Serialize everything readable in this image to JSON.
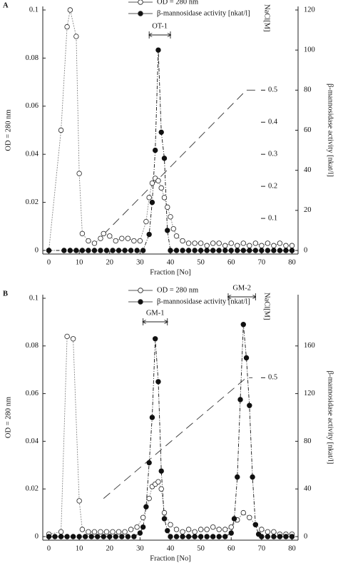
{
  "chart_data": [
    {
      "type": "line",
      "panel_label": "A",
      "xlabel": "Fraction [No]",
      "ylabel": "OD = 280 nm",
      "y2label": "β-mannosidase activity [nkat/l]",
      "y3label": "NaCl[M]",
      "xlim": [
        -2,
        82
      ],
      "xticks": [
        0,
        10,
        20,
        30,
        40,
        50,
        60,
        70,
        80
      ],
      "ylim": [
        0,
        0.1
      ],
      "yticks": [
        0,
        0.02,
        0.04,
        0.06,
        0.08,
        0.1
      ],
      "y2lim": [
        0,
        120
      ],
      "y2ticks": [
        0,
        20,
        40,
        60,
        80,
        100,
        120
      ],
      "y3lim": [
        0,
        0.75
      ],
      "y3ticks": [
        0.1,
        0.2,
        0.3,
        0.4,
        0.5
      ],
      "series": [
        {
          "name": "OD = 280 nm",
          "color": "#888888",
          "marker": "open",
          "axis": "y",
          "x": [
            0,
            4,
            6,
            7,
            9,
            10,
            11,
            13,
            15,
            17,
            18,
            20,
            22,
            24,
            26,
            28,
            30,
            32,
            33,
            34,
            35,
            36,
            37,
            38,
            39,
            40,
            41,
            42,
            44,
            46,
            48,
            50,
            52,
            54,
            56,
            58,
            60,
            62,
            64,
            66,
            68,
            70,
            72,
            74,
            76,
            78,
            80
          ],
          "values": [
            0,
            0.05,
            0.093,
            0.1,
            0.089,
            0.032,
            0.007,
            0.004,
            0.003,
            0.005,
            0.007,
            0.006,
            0.004,
            0.005,
            0.005,
            0.004,
            0.004,
            0.012,
            0.022,
            0.028,
            0.03,
            0.029,
            0.026,
            0.022,
            0.018,
            0.014,
            0.009,
            0.006,
            0.004,
            0.003,
            0.003,
            0.003,
            0.002,
            0.003,
            0.003,
            0.002,
            0.003,
            0.002,
            0.003,
            0.002,
            0.003,
            0.002,
            0.003,
            0.002,
            0.003,
            0.002,
            0.002
          ]
        },
        {
          "name": "β-mannosidase activity [nkat/l]",
          "color": "#111111",
          "marker": "filled",
          "axis": "y2",
          "x": [
            0,
            5,
            7,
            9,
            11,
            13,
            15,
            17,
            19,
            21,
            23,
            25,
            27,
            29,
            31,
            33,
            34,
            35,
            36,
            37,
            38,
            39,
            40,
            42,
            44,
            46,
            48,
            50,
            52,
            54,
            56,
            58,
            60,
            62,
            64,
            66,
            68,
            70,
            72,
            74,
            76,
            78,
            80
          ],
          "values": [
            0,
            0,
            0,
            0,
            0,
            0,
            0,
            0,
            0,
            0,
            0,
            0,
            0,
            0,
            0,
            8,
            24,
            50,
            100,
            59,
            46,
            10,
            0,
            0,
            0,
            0,
            0,
            0,
            0,
            0,
            0,
            0,
            0,
            0,
            0,
            0,
            0,
            0,
            0,
            0,
            0,
            0,
            0
          ]
        }
      ],
      "gradient": {
        "axis": "y3",
        "x": [
          18,
          65,
          68
        ],
        "values": [
          0.05,
          0.5,
          0.5
        ]
      },
      "annotations": [
        {
          "text": "OT-1",
          "x": [
            33,
            40
          ]
        }
      ]
    },
    {
      "type": "line",
      "panel_label": "B",
      "xlabel": "Fraction [No]",
      "ylabel": "OD = 280 nm",
      "y2label": "β-mannosidase activity [nkat/l]",
      "y3label": "NaCl[M]",
      "xlim": [
        -2,
        82
      ],
      "xticks": [
        0,
        10,
        20,
        30,
        40,
        50,
        60,
        70,
        80
      ],
      "ylim": [
        0,
        0.1
      ],
      "yticks": [
        0,
        0.02,
        0.04,
        0.06,
        0.08,
        0.1
      ],
      "y2lim": [
        0,
        200
      ],
      "y2ticks": [
        0,
        40,
        80,
        120,
        160
      ],
      "y3lim": [
        0,
        0.75
      ],
      "y3ticks": [
        0.5
      ],
      "series": [
        {
          "name": "OD = 280 nm",
          "color": "#888888",
          "marker": "open",
          "axis": "y",
          "x": [
            0,
            4,
            6,
            8,
            10,
            11,
            13,
            15,
            17,
            19,
            21,
            23,
            25,
            27,
            29,
            31,
            33,
            34,
            35,
            36,
            37,
            38,
            40,
            42,
            44,
            46,
            48,
            50,
            52,
            54,
            56,
            58,
            60,
            62,
            64,
            66,
            68,
            70,
            72,
            74,
            76,
            78,
            80
          ],
          "values": [
            0.001,
            0.002,
            0.084,
            0.083,
            0.015,
            0.003,
            0.002,
            0.002,
            0.002,
            0.002,
            0.002,
            0.002,
            0.002,
            0.003,
            0.004,
            0.008,
            0.016,
            0.021,
            0.022,
            0.023,
            0.02,
            0.01,
            0.005,
            0.003,
            0.002,
            0.003,
            0.002,
            0.003,
            0.003,
            0.004,
            0.003,
            0.003,
            0.004,
            0.007,
            0.01,
            0.008,
            0.005,
            0.003,
            0.002,
            0.002,
            0.001,
            0.001,
            0.001
          ]
        },
        {
          "name": "β-mannosidase activity [nkat/l]",
          "color": "#111111",
          "marker": "filled",
          "axis": "y2",
          "x": [
            0,
            2,
            4,
            6,
            8,
            10,
            12,
            14,
            16,
            18,
            20,
            22,
            24,
            26,
            28,
            30,
            31,
            32,
            33,
            34,
            35,
            36,
            37,
            38,
            39,
            40,
            42,
            44,
            46,
            48,
            50,
            52,
            54,
            56,
            58,
            60,
            61,
            62,
            63,
            64,
            65,
            66,
            67,
            68,
            69,
            70,
            72,
            74,
            76,
            78,
            80
          ],
          "values": [
            0,
            0,
            0,
            0,
            0,
            0,
            0,
            0,
            0,
            0,
            0,
            0,
            0,
            0,
            0,
            3,
            8,
            25,
            62,
            100,
            166,
            130,
            55,
            15,
            5,
            0,
            0,
            0,
            0,
            0,
            0,
            0,
            0,
            0,
            0,
            3,
            15,
            50,
            115,
            178,
            150,
            110,
            50,
            10,
            2,
            0,
            0,
            0,
            0,
            0,
            0
          ]
        }
      ],
      "gradient": {
        "axis": "y3",
        "x": [
          18,
          65,
          67
        ],
        "values": [
          0.12,
          0.5,
          0.5
        ]
      },
      "annotations": [
        {
          "text": "GM-1",
          "x": [
            31,
            39
          ]
        },
        {
          "text": "GM-2",
          "x": [
            59,
            68
          ]
        }
      ]
    }
  ]
}
